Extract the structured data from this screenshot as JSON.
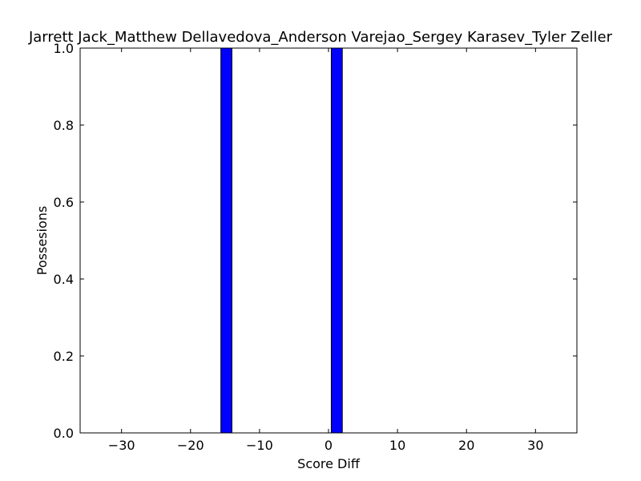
{
  "chart_data": {
    "type": "bar",
    "title": "Jarrett Jack_Matthew Dellavedova_Anderson Varejao_Sergey Karasev_Tyler Zeller",
    "xlabel": "Score Diff",
    "ylabel": "Possesions",
    "xlim": [
      -36,
      36
    ],
    "ylim": [
      0,
      1.0
    ],
    "bar_width": 1.6,
    "bar_color": "#0000ff",
    "bars": [
      {
        "x": -15.6,
        "value": 1.0
      },
      {
        "x": 0.4,
        "value": 1.0
      }
    ],
    "xticks": [
      -30,
      -20,
      -10,
      0,
      10,
      20,
      30
    ],
    "xtick_labels": [
      "−30",
      "−20",
      "−10",
      "0",
      "10",
      "20",
      "30"
    ],
    "yticks": [
      0.0,
      0.2,
      0.4,
      0.6,
      0.8,
      1.0
    ],
    "ytick_labels": [
      "0.0",
      "0.2",
      "0.4",
      "0.6",
      "0.8",
      "1.0"
    ],
    "grid": false
  }
}
